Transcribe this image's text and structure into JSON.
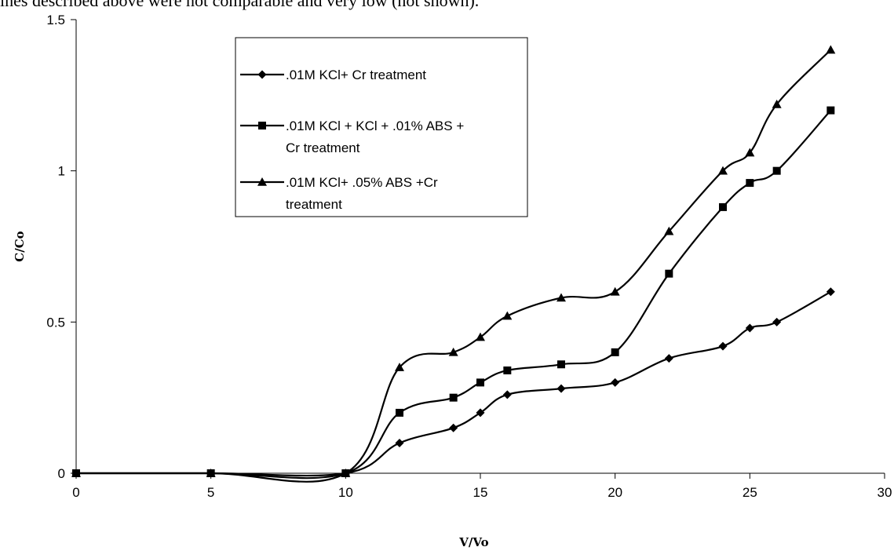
{
  "page": {
    "caption_text": "ines described above were not comparable and very low (not shown)."
  },
  "chart_data": {
    "type": "line",
    "title": "",
    "xlabel": "V/Vo",
    "ylabel": "C/Co",
    "xlim": [
      0,
      30
    ],
    "ylim": [
      0,
      1.5
    ],
    "x_ticks": [
      "0",
      "5",
      "10",
      "15",
      "20",
      "25",
      "30"
    ],
    "y_ticks": [
      "0",
      "0.5",
      "1",
      "1.5"
    ],
    "grid": false,
    "legend_placement": "top-center",
    "series": [
      {
        "name": ".01M KCl+ Cr treatment",
        "marker": "diamond",
        "color": "#000000",
        "x": [
          0,
          5,
          10,
          12,
          14,
          15,
          16,
          18,
          20,
          22,
          24,
          25,
          26,
          28
        ],
        "y": [
          0,
          0,
          0,
          0.1,
          0.15,
          0.2,
          0.26,
          0.28,
          0.3,
          0.38,
          0.42,
          0.48,
          0.5,
          0.6
        ]
      },
      {
        "name": ".01M KCl + KCl + .01% ABS + Cr treatment",
        "legend_lines": [
          ".01M KCl + KCl + .01% ABS +",
          "Cr treatment"
        ],
        "marker": "square",
        "color": "#000000",
        "x": [
          0,
          5,
          10,
          12,
          14,
          15,
          16,
          18,
          20,
          22,
          24,
          25,
          26,
          28
        ],
        "y": [
          0,
          0,
          0,
          0.2,
          0.25,
          0.3,
          0.34,
          0.36,
          0.4,
          0.66,
          0.88,
          0.96,
          1.0,
          1.2
        ]
      },
      {
        "name": ".01M KCl+ .05% ABS +Cr treatment",
        "legend_lines": [
          ".01M KCl+ .05% ABS +Cr",
          "treatment"
        ],
        "marker": "triangle",
        "color": "#000000",
        "x": [
          0,
          5,
          10,
          12,
          14,
          15,
          16,
          18,
          20,
          22,
          24,
          25,
          26,
          28
        ],
        "y": [
          0,
          0,
          0,
          0.35,
          0.4,
          0.45,
          0.52,
          0.58,
          0.6,
          0.8,
          1.0,
          1.06,
          1.22,
          1.4
        ]
      }
    ]
  }
}
